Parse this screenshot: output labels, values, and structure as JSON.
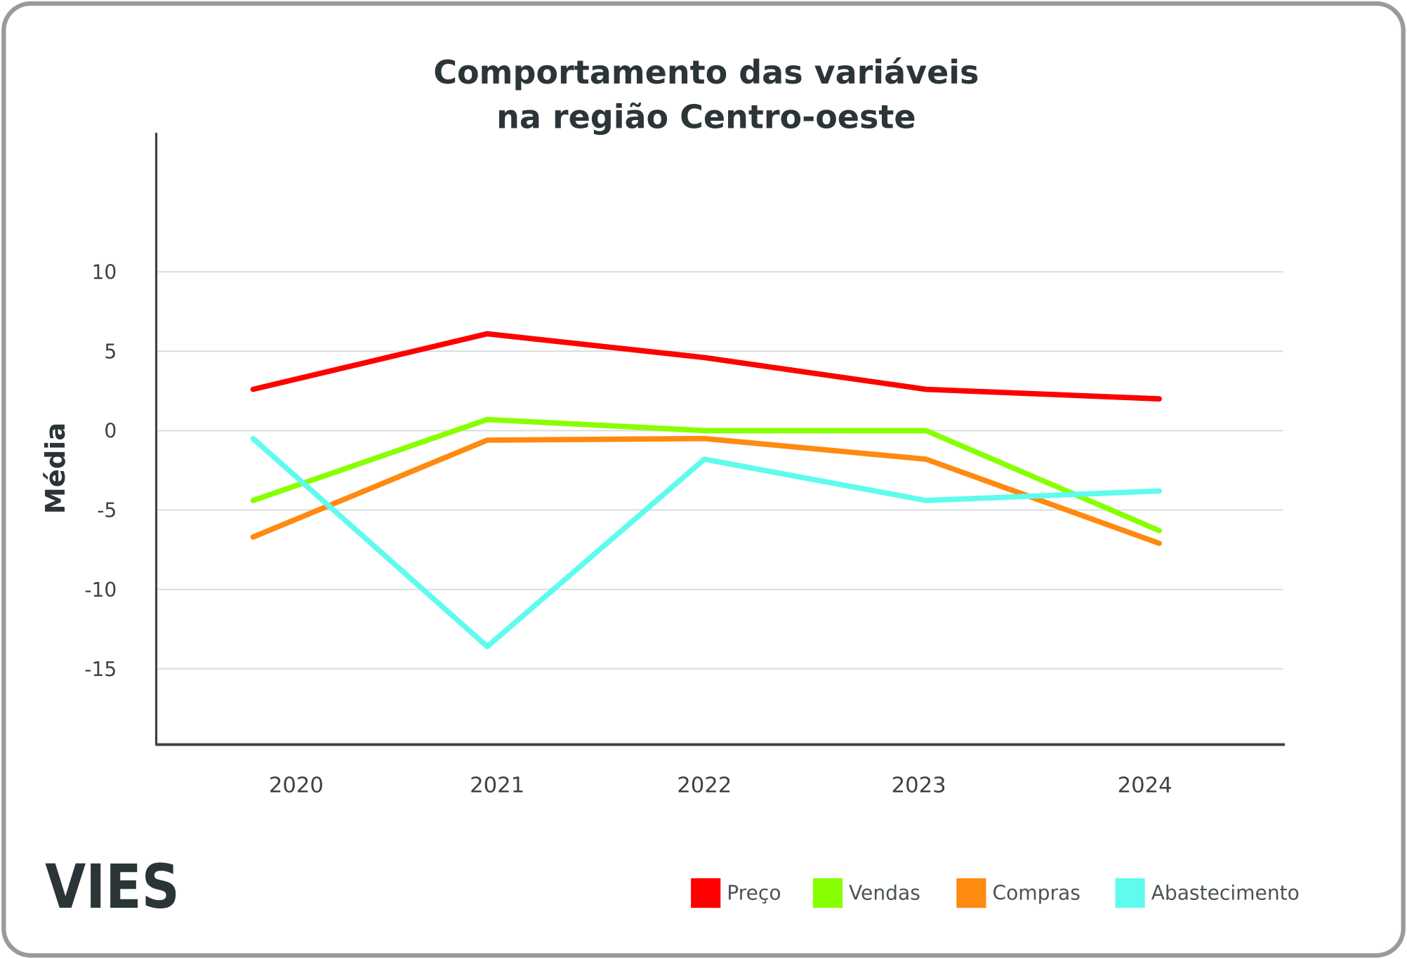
{
  "logo": "VIES",
  "chart_data": {
    "type": "line",
    "title": [
      "Comportamento das variáveis",
      "na região Centro-oeste"
    ],
    "xlabel": "",
    "ylabel": "Média",
    "categories": [
      "2020",
      "2021",
      "2022",
      "2023",
      "2024"
    ],
    "yticks": [
      10,
      5,
      0,
      -5,
      -10,
      -15
    ],
    "ytick_labels": [
      "10",
      "5",
      "0",
      "-5",
      "-10",
      "-15"
    ],
    "ylim": [
      -19.7,
      18.5
    ],
    "grid": true,
    "legend_position": "bottom-right",
    "series": [
      {
        "name": "Preço",
        "color": "#ff0000",
        "values": [
          2.6,
          6.1,
          4.6,
          2.6,
          2.0
        ]
      },
      {
        "name": "Vendas",
        "color": "#88ff00",
        "values": [
          -4.4,
          0.7,
          0.0,
          0.0,
          -6.3
        ]
      },
      {
        "name": "Compras",
        "color": "#ff8a10",
        "values": [
          -6.7,
          -0.6,
          -0.5,
          -1.8,
          -7.1
        ]
      },
      {
        "name": "Abastecimento",
        "color": "#5ffbef",
        "values": [
          -0.5,
          -13.6,
          -1.8,
          -4.4,
          -3.8
        ]
      }
    ]
  }
}
